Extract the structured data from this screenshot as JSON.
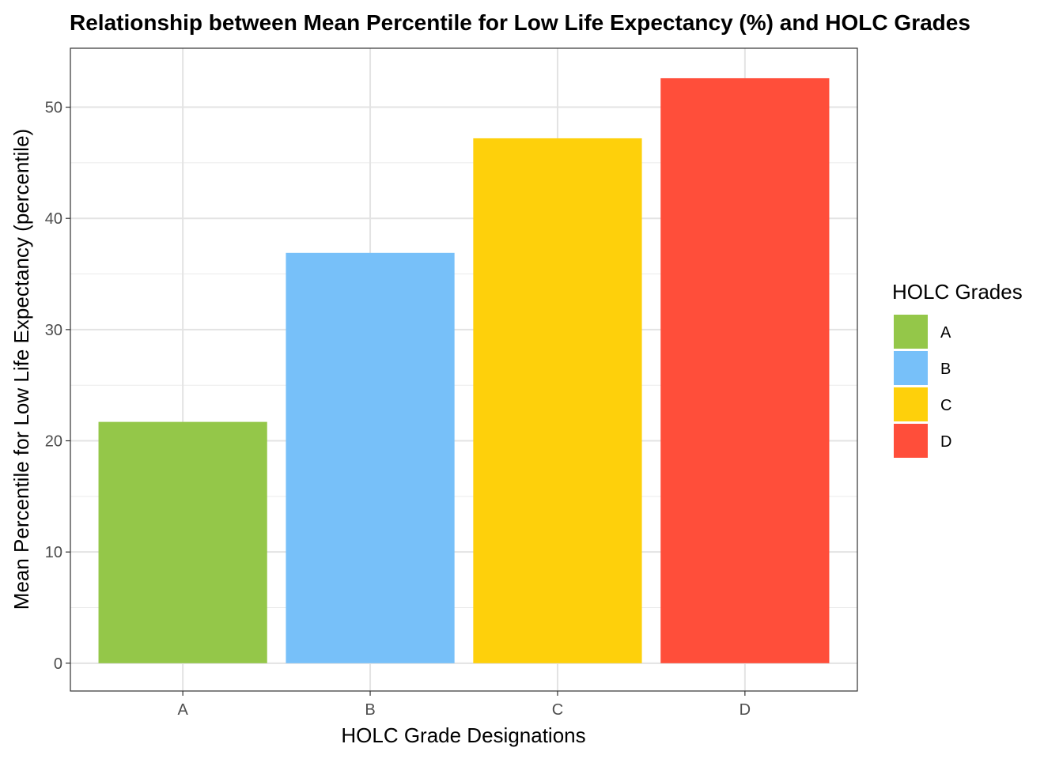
{
  "chart_data": {
    "type": "bar",
    "title": "Relationship between Mean Percentile for Low Life Expectancy (%) and HOLC Grades",
    "xlabel": "HOLC Grade Designations",
    "ylabel": "Mean Percentile for Low Life Expectancy (percentile)",
    "categories": [
      "A",
      "B",
      "C",
      "D"
    ],
    "values": [
      21.7,
      36.9,
      47.2,
      52.6
    ],
    "colors": [
      "#94c749",
      "#77c0f9",
      "#fed00b",
      "#ff4e3a"
    ],
    "ylim": [
      -2.5,
      55.3
    ],
    "yticks": [
      0,
      10,
      20,
      30,
      40,
      50
    ],
    "grid": true,
    "legend": {
      "title": "HOLC Grades",
      "position": "right",
      "entries": [
        "A",
        "B",
        "C",
        "D"
      ]
    }
  }
}
